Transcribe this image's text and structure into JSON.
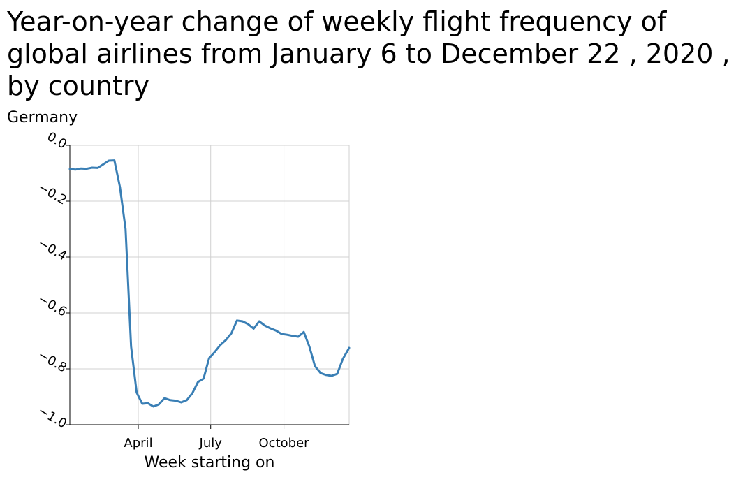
{
  "chart_data": {
    "type": "line",
    "title": "Year-on-year change of weekly flight frequency of global airlines from January 6 to December 22 , 2020 , by country",
    "ylabel": "Germany",
    "xlabel": "Week starting on",
    "ylim": [
      -1.0,
      0.0
    ],
    "yticks": [
      0.0,
      -0.2,
      -0.4,
      -0.6,
      -0.8,
      -1.0
    ],
    "ytick_labels": [
      "0.0",
      "−0.2",
      "−0.4",
      "−0.6",
      "−0.8",
      "−1.0"
    ],
    "xlim": [
      "2020-01-06",
      "2020-12-22"
    ],
    "xticks": [
      {
        "label": "April",
        "date": "2020-04-01"
      },
      {
        "label": "July",
        "date": "2020-07-01"
      },
      {
        "label": "October",
        "date": "2020-10-01"
      }
    ],
    "grid": true,
    "color": "#3a7fb5",
    "series": [
      {
        "x": [
          "2020-01-06",
          "2020-01-13",
          "2020-01-20",
          "2020-01-27",
          "2020-02-03",
          "2020-02-10",
          "2020-02-17",
          "2020-02-24",
          "2020-03-02",
          "2020-03-09",
          "2020-03-16",
          "2020-03-23",
          "2020-03-30",
          "2020-04-06",
          "2020-04-13",
          "2020-04-20",
          "2020-04-27",
          "2020-05-04",
          "2020-05-11",
          "2020-05-18",
          "2020-05-25",
          "2020-06-01",
          "2020-06-08",
          "2020-06-15",
          "2020-06-22",
          "2020-06-29",
          "2020-07-06",
          "2020-07-13",
          "2020-07-20",
          "2020-07-27",
          "2020-08-03",
          "2020-08-10",
          "2020-08-17",
          "2020-08-24",
          "2020-08-31",
          "2020-09-07",
          "2020-09-14",
          "2020-09-21",
          "2020-09-28",
          "2020-10-05",
          "2020-10-12",
          "2020-10-19",
          "2020-10-26",
          "2020-11-02",
          "2020-11-09",
          "2020-11-16",
          "2020-11-23",
          "2020-11-30",
          "2020-12-07",
          "2020-12-14",
          "2020-12-22"
        ],
        "y": [
          -0.085,
          -0.087,
          -0.083,
          -0.084,
          -0.08,
          -0.081,
          -0.068,
          -0.055,
          -0.054,
          -0.15,
          -0.3,
          -0.72,
          -0.885,
          -0.925,
          -0.923,
          -0.935,
          -0.927,
          -0.905,
          -0.912,
          -0.914,
          -0.92,
          -0.912,
          -0.887,
          -0.847,
          -0.835,
          -0.762,
          -0.74,
          -0.715,
          -0.697,
          -0.673,
          -0.627,
          -0.63,
          -0.64,
          -0.656,
          -0.63,
          -0.645,
          -0.655,
          -0.663,
          -0.675,
          -0.678,
          -0.682,
          -0.685,
          -0.668,
          -0.72,
          -0.79,
          -0.815,
          -0.822,
          -0.825,
          -0.818,
          -0.765,
          -0.725
        ]
      }
    ]
  }
}
